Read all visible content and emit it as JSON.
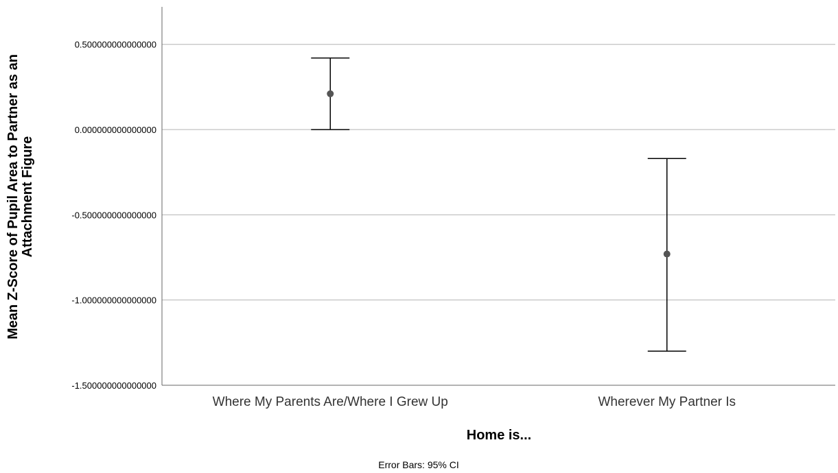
{
  "chart_data": {
    "type": "errorbar",
    "title": "",
    "xlabel": "Home is...",
    "ylabel_lines": [
      "Mean Z-Score of Pupil Area to Partner as an",
      "Attachment Figure"
    ],
    "footnote": "Error Bars: 95% CI",
    "categories": [
      "Where My Parents Are/Where I Grew Up",
      "Wherever My Partner Is"
    ],
    "series": [
      {
        "means": [
          0.21,
          -0.73
        ],
        "ci_lower": [
          0.0,
          -1.3
        ],
        "ci_upper": [
          0.42,
          -0.17
        ]
      }
    ],
    "ylim": [
      -1.5,
      0.72
    ],
    "y_ticks": [
      0.5,
      0.0,
      -0.5,
      -1.0,
      -1.5
    ],
    "y_tick_labels": [
      "0.500000000000000",
      "0.000000000000000",
      "-0.500000000000000",
      "-1.000000000000000",
      "-1.500000000000000"
    ],
    "grid": true,
    "colors": {
      "gridline": "#b3b3b3",
      "errorbar": "#000000",
      "marker": "#555555",
      "axis": "#666666"
    }
  }
}
